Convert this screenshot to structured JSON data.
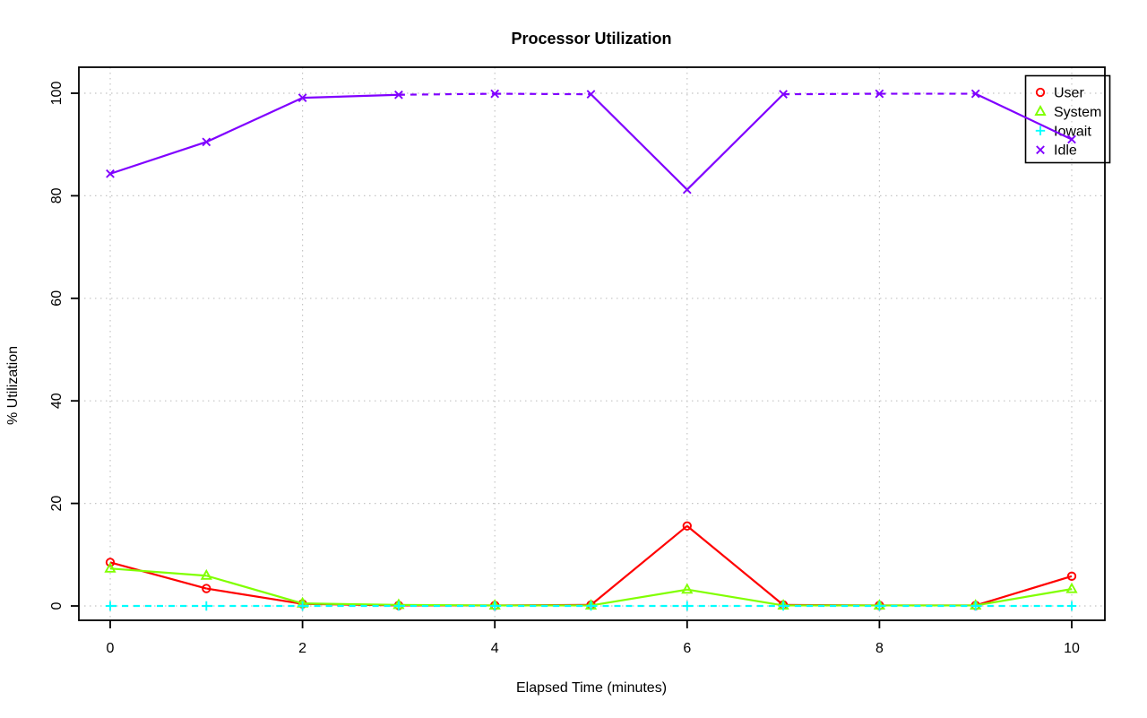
{
  "chart_data": {
    "type": "line",
    "title": "Processor Utilization",
    "xlabel": "Elapsed Time (minutes)",
    "ylabel": "% Utilization",
    "x": [
      0,
      1,
      2,
      3,
      4,
      5,
      6,
      7,
      8,
      9,
      10
    ],
    "xticks": [
      0,
      2,
      4,
      6,
      8,
      10
    ],
    "yticks": [
      0,
      20,
      40,
      60,
      80,
      100
    ],
    "xlim": [
      0,
      10
    ],
    "ylim": [
      0,
      100
    ],
    "grid": "dotted",
    "grid_color": "#c4c4c4",
    "frame_color": "#000000",
    "legend_position": "top-right",
    "legend_transparent": true,
    "series": [
      {
        "name": "User",
        "color": "#FF0000",
        "marker": "circle",
        "line_style": "solid",
        "dashed_segments": [],
        "values": [
          8.5,
          3.4,
          0.4,
          0.1,
          0.1,
          0.2,
          15.6,
          0.2,
          0.1,
          0.1,
          5.8
        ]
      },
      {
        "name": "System",
        "color": "#80FF00",
        "marker": "triangle",
        "line_style": "solid",
        "dashed_segments": [],
        "values": [
          7.3,
          5.9,
          0.5,
          0.2,
          0.1,
          0.1,
          3.2,
          0.1,
          0.1,
          0.1,
          3.3
        ]
      },
      {
        "name": "Iowait",
        "color": "#00FFFF",
        "marker": "plus",
        "line_style": "dashed",
        "dashed_segments": [],
        "values": [
          0,
          0,
          0,
          0,
          0,
          0,
          0,
          0,
          0,
          0,
          0
        ]
      },
      {
        "name": "Idle",
        "color": "#8000FF",
        "marker": "x",
        "line_style": "solid",
        "dashed_segments": [
          3,
          4,
          7,
          8
        ],
        "values": [
          84.3,
          90.5,
          99.1,
          99.7,
          99.9,
          99.8,
          81.2,
          99.8,
          99.9,
          99.9,
          91.0
        ]
      }
    ]
  }
}
